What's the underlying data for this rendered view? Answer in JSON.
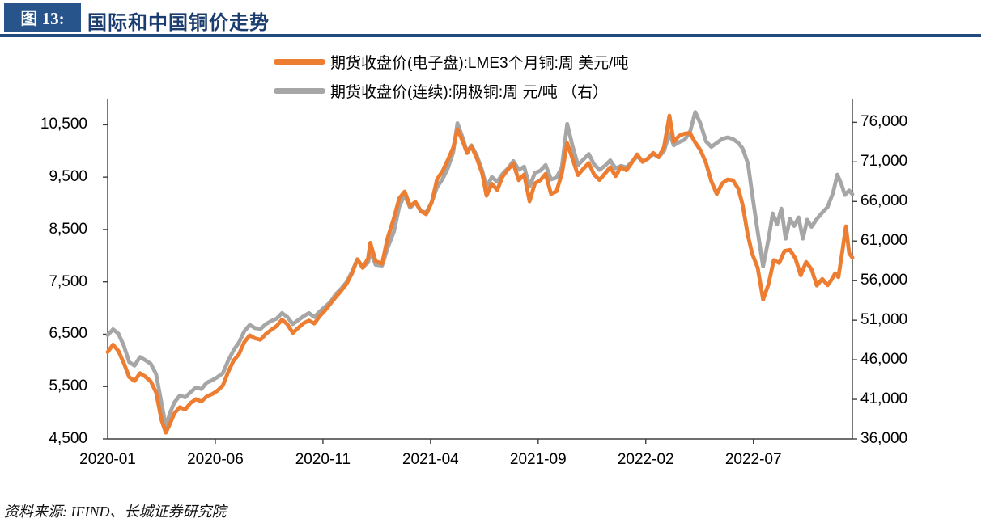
{
  "theme": {
    "accent_blue": "#27548A",
    "title_text": "#1B3C6E",
    "rule_blue": "#24497E",
    "axis_color": "#3F3F3F",
    "orange": "#ED7D31",
    "gray": "#A6A6A6"
  },
  "header": {
    "figure_label": "图 13:",
    "title": "国际和中国铜价走势"
  },
  "legend": [
    {
      "label": "期货收盘价(电子盘):LME3个月铜:周 美元/吨",
      "color": "#ED7D31"
    },
    {
      "label": "期货收盘价(连续):阴极铜:周 元/吨 （右）",
      "color": "#A6A6A6"
    }
  ],
  "footer": {
    "source": "资料来源: IFIND、长城证券研究院"
  },
  "chart_data": {
    "type": "line",
    "title": "国际和中国铜价走势",
    "x_tick_labels": [
      "2020-01",
      "2020-06",
      "2020-11",
      "2021-04",
      "2021-09",
      "2022-02",
      "2022-07"
    ],
    "x_tick_months": [
      0,
      5,
      10,
      15,
      20,
      25,
      30
    ],
    "month_span": 34.6,
    "left_axis": {
      "unit": "美元/吨",
      "ticks": [
        4500,
        5500,
        6500,
        7500,
        8500,
        9500,
        10500
      ],
      "range": [
        4500,
        11000
      ]
    },
    "right_axis": {
      "unit": "元/吨",
      "ticks": [
        36000,
        41000,
        46000,
        51000,
        56000,
        61000,
        66000,
        71000,
        76000
      ],
      "range": [
        36000,
        79000
      ]
    },
    "legend_position": "top",
    "grid": false,
    "series": [
      {
        "name": "期货收盘价(连续):阴极铜:周 元/吨 （右）",
        "axis": "right",
        "color": "#A6A6A6",
        "points": [
          [
            0.0,
            49100
          ],
          [
            0.25,
            49850
          ],
          [
            0.5,
            49300
          ],
          [
            0.75,
            47800
          ],
          [
            1.0,
            45700
          ],
          [
            1.25,
            45250
          ],
          [
            1.5,
            46350
          ],
          [
            1.75,
            45950
          ],
          [
            2.0,
            45500
          ],
          [
            2.25,
            44200
          ],
          [
            2.5,
            40500
          ],
          [
            2.7,
            37600
          ],
          [
            2.9,
            39300
          ],
          [
            3.1,
            40600
          ],
          [
            3.35,
            41500
          ],
          [
            3.6,
            41250
          ],
          [
            3.85,
            41900
          ],
          [
            4.1,
            42500
          ],
          [
            4.35,
            42300
          ],
          [
            4.6,
            43100
          ],
          [
            4.85,
            43400
          ],
          [
            5.1,
            43800
          ],
          [
            5.35,
            44300
          ],
          [
            5.6,
            45900
          ],
          [
            5.85,
            47200
          ],
          [
            6.1,
            48200
          ],
          [
            6.35,
            49600
          ],
          [
            6.6,
            50400
          ],
          [
            6.85,
            50000
          ],
          [
            7.1,
            49900
          ],
          [
            7.35,
            50500
          ],
          [
            7.6,
            50900
          ],
          [
            7.85,
            51200
          ],
          [
            8.1,
            51900
          ],
          [
            8.35,
            51400
          ],
          [
            8.6,
            50500
          ],
          [
            8.85,
            51000
          ],
          [
            9.1,
            51500
          ],
          [
            9.35,
            51900
          ],
          [
            9.6,
            51400
          ],
          [
            9.85,
            52100
          ],
          [
            10.1,
            52700
          ],
          [
            10.35,
            53300
          ],
          [
            10.6,
            54300
          ],
          [
            10.85,
            55000
          ],
          [
            11.1,
            55800
          ],
          [
            11.35,
            57100
          ],
          [
            11.6,
            58700
          ],
          [
            11.85,
            57700
          ],
          [
            12.1,
            58300
          ],
          [
            12.2,
            59700
          ],
          [
            12.45,
            58000
          ],
          [
            12.75,
            57900
          ],
          [
            13.0,
            60100
          ],
          [
            13.3,
            62200
          ],
          [
            13.55,
            65400
          ],
          [
            13.8,
            66800
          ],
          [
            14.05,
            65200
          ],
          [
            14.3,
            65900
          ],
          [
            14.55,
            64800
          ],
          [
            14.8,
            64600
          ],
          [
            15.05,
            65900
          ],
          [
            15.3,
            67800
          ],
          [
            15.55,
            68800
          ],
          [
            15.8,
            70200
          ],
          [
            16.05,
            72200
          ],
          [
            16.25,
            75900
          ],
          [
            16.5,
            74000
          ],
          [
            16.7,
            72200
          ],
          [
            16.9,
            73100
          ],
          [
            17.15,
            71800
          ],
          [
            17.4,
            69900
          ],
          [
            17.6,
            67800
          ],
          [
            17.85,
            69100
          ],
          [
            18.1,
            68500
          ],
          [
            18.35,
            69500
          ],
          [
            18.6,
            70200
          ],
          [
            18.85,
            71100
          ],
          [
            19.1,
            70000
          ],
          [
            19.35,
            70400
          ],
          [
            19.6,
            67900
          ],
          [
            19.85,
            69600
          ],
          [
            20.1,
            69900
          ],
          [
            20.35,
            70600
          ],
          [
            20.6,
            68800
          ],
          [
            20.85,
            69000
          ],
          [
            21.1,
            70300
          ],
          [
            21.35,
            75800
          ],
          [
            21.6,
            73000
          ],
          [
            21.85,
            70600
          ],
          [
            22.1,
            71300
          ],
          [
            22.35,
            72000
          ],
          [
            22.6,
            70700
          ],
          [
            22.85,
            70000
          ],
          [
            23.1,
            70500
          ],
          [
            23.35,
            71200
          ],
          [
            23.6,
            70200
          ],
          [
            23.85,
            70500
          ],
          [
            24.1,
            70300
          ],
          [
            24.35,
            71000
          ],
          [
            24.6,
            71700
          ],
          [
            24.85,
            71100
          ],
          [
            25.1,
            71400
          ],
          [
            25.35,
            72000
          ],
          [
            25.6,
            71600
          ],
          [
            25.85,
            72400
          ],
          [
            26.1,
            74600
          ],
          [
            26.3,
            73100
          ],
          [
            26.55,
            73500
          ],
          [
            26.8,
            73800
          ],
          [
            27.05,
            74700
          ],
          [
            27.3,
            77300
          ],
          [
            27.55,
            75800
          ],
          [
            27.8,
            73600
          ],
          [
            28.05,
            72900
          ],
          [
            28.3,
            73400
          ],
          [
            28.55,
            73900
          ],
          [
            28.8,
            74100
          ],
          [
            29.05,
            73900
          ],
          [
            29.3,
            73400
          ],
          [
            29.5,
            72700
          ],
          [
            29.75,
            70800
          ],
          [
            29.95,
            66800
          ],
          [
            30.2,
            62200
          ],
          [
            30.45,
            57800
          ],
          [
            30.7,
            61200
          ],
          [
            30.9,
            64500
          ],
          [
            31.1,
            63100
          ],
          [
            31.3,
            65100
          ],
          [
            31.5,
            61300
          ],
          [
            31.7,
            63800
          ],
          [
            31.9,
            62900
          ],
          [
            32.1,
            64000
          ],
          [
            32.3,
            61300
          ],
          [
            32.5,
            63700
          ],
          [
            32.7,
            62800
          ],
          [
            32.95,
            63800
          ],
          [
            33.2,
            64600
          ],
          [
            33.45,
            65300
          ],
          [
            33.7,
            67100
          ],
          [
            33.9,
            69400
          ],
          [
            34.1,
            68100
          ],
          [
            34.25,
            66830
          ],
          [
            34.45,
            67400
          ],
          [
            34.6,
            66900
          ]
        ]
      },
      {
        "name": "期货收盘价(电子盘):LME3个月铜:周 美元/吨",
        "axis": "left",
        "color": "#ED7D31",
        "points": [
          [
            0.0,
            6160
          ],
          [
            0.25,
            6300
          ],
          [
            0.5,
            6180
          ],
          [
            0.75,
            5950
          ],
          [
            1.0,
            5680
          ],
          [
            1.25,
            5605
          ],
          [
            1.5,
            5755
          ],
          [
            1.75,
            5690
          ],
          [
            2.0,
            5600
          ],
          [
            2.25,
            5390
          ],
          [
            2.5,
            4860
          ],
          [
            2.7,
            4620
          ],
          [
            2.9,
            4790
          ],
          [
            3.1,
            4990
          ],
          [
            3.35,
            5105
          ],
          [
            3.6,
            5060
          ],
          [
            3.85,
            5185
          ],
          [
            4.1,
            5260
          ],
          [
            4.35,
            5215
          ],
          [
            4.6,
            5310
          ],
          [
            4.85,
            5355
          ],
          [
            5.1,
            5420
          ],
          [
            5.35,
            5520
          ],
          [
            5.6,
            5780
          ],
          [
            5.85,
            5995
          ],
          [
            6.1,
            6120
          ],
          [
            6.35,
            6350
          ],
          [
            6.6,
            6480
          ],
          [
            6.85,
            6420
          ],
          [
            7.1,
            6395
          ],
          [
            7.35,
            6505
          ],
          [
            7.6,
            6585
          ],
          [
            7.85,
            6655
          ],
          [
            8.1,
            6780
          ],
          [
            8.35,
            6690
          ],
          [
            8.6,
            6525
          ],
          [
            8.85,
            6620
          ],
          [
            9.1,
            6710
          ],
          [
            9.35,
            6760
          ],
          [
            9.6,
            6705
          ],
          [
            9.85,
            6845
          ],
          [
            10.1,
            6955
          ],
          [
            10.35,
            7085
          ],
          [
            10.6,
            7210
          ],
          [
            10.85,
            7330
          ],
          [
            11.1,
            7460
          ],
          [
            11.35,
            7660
          ],
          [
            11.6,
            7930
          ],
          [
            11.85,
            7765
          ],
          [
            12.1,
            7950
          ],
          [
            12.2,
            8245
          ],
          [
            12.45,
            7895
          ],
          [
            12.75,
            7845
          ],
          [
            13.0,
            8330
          ],
          [
            13.3,
            8720
          ],
          [
            13.55,
            9100
          ],
          [
            13.8,
            9225
          ],
          [
            14.05,
            8946
          ],
          [
            14.3,
            9025
          ],
          [
            14.55,
            8850
          ],
          [
            14.8,
            8790
          ],
          [
            15.05,
            9010
          ],
          [
            15.3,
            9455
          ],
          [
            15.55,
            9610
          ],
          [
            15.8,
            9825
          ],
          [
            16.05,
            10060
          ],
          [
            16.25,
            10417
          ],
          [
            16.5,
            10180
          ],
          [
            16.7,
            9960
          ],
          [
            16.9,
            10090
          ],
          [
            17.15,
            9860
          ],
          [
            17.4,
            9570
          ],
          [
            17.6,
            9146
          ],
          [
            17.85,
            9372
          ],
          [
            18.1,
            9255
          ],
          [
            18.35,
            9511
          ],
          [
            18.6,
            9650
          ],
          [
            18.85,
            9755
          ],
          [
            19.1,
            9441
          ],
          [
            19.35,
            9550
          ],
          [
            19.6,
            9037
          ],
          [
            19.85,
            9382
          ],
          [
            20.1,
            9440
          ],
          [
            20.35,
            9562
          ],
          [
            20.6,
            9180
          ],
          [
            20.85,
            9228
          ],
          [
            21.1,
            9560
          ],
          [
            21.35,
            10151
          ],
          [
            21.6,
            9850
          ],
          [
            21.85,
            9540
          ],
          [
            22.1,
            9660
          ],
          [
            22.35,
            9770
          ],
          [
            22.6,
            9550
          ],
          [
            22.85,
            9446
          ],
          [
            23.1,
            9565
          ],
          [
            23.35,
            9690
          ],
          [
            23.6,
            9520
          ],
          [
            23.85,
            9692
          ],
          [
            24.1,
            9631
          ],
          [
            24.35,
            9775
          ],
          [
            24.6,
            9935
          ],
          [
            24.85,
            9790
          ],
          [
            25.1,
            9858
          ],
          [
            25.35,
            9962
          ],
          [
            25.6,
            9880
          ],
          [
            25.85,
            10075
          ],
          [
            26.1,
            10674
          ],
          [
            26.3,
            10175
          ],
          [
            26.55,
            10290
          ],
          [
            26.8,
            10330
          ],
          [
            27.05,
            10345
          ],
          [
            27.3,
            10160
          ],
          [
            27.55,
            10010
          ],
          [
            27.8,
            9770
          ],
          [
            28.05,
            9421
          ],
          [
            28.3,
            9178
          ],
          [
            28.55,
            9380
          ],
          [
            28.8,
            9455
          ],
          [
            29.05,
            9440
          ],
          [
            29.3,
            9280
          ],
          [
            29.5,
            8970
          ],
          [
            29.75,
            8380
          ],
          [
            29.95,
            8030
          ],
          [
            30.2,
            7772
          ],
          [
            30.45,
            7160
          ],
          [
            30.7,
            7450
          ],
          [
            30.95,
            7915
          ],
          [
            31.2,
            7860
          ],
          [
            31.45,
            8090
          ],
          [
            31.7,
            8110
          ],
          [
            31.95,
            7950
          ],
          [
            32.2,
            7625
          ],
          [
            32.45,
            7880
          ],
          [
            32.7,
            7740
          ],
          [
            32.95,
            7430
          ],
          [
            33.2,
            7555
          ],
          [
            33.45,
            7435
          ],
          [
            33.6,
            7520
          ],
          [
            33.8,
            7665
          ],
          [
            33.95,
            7590
          ],
          [
            34.1,
            7990
          ],
          [
            34.3,
            8560
          ],
          [
            34.45,
            8050
          ],
          [
            34.6,
            7960
          ]
        ]
      }
    ]
  }
}
